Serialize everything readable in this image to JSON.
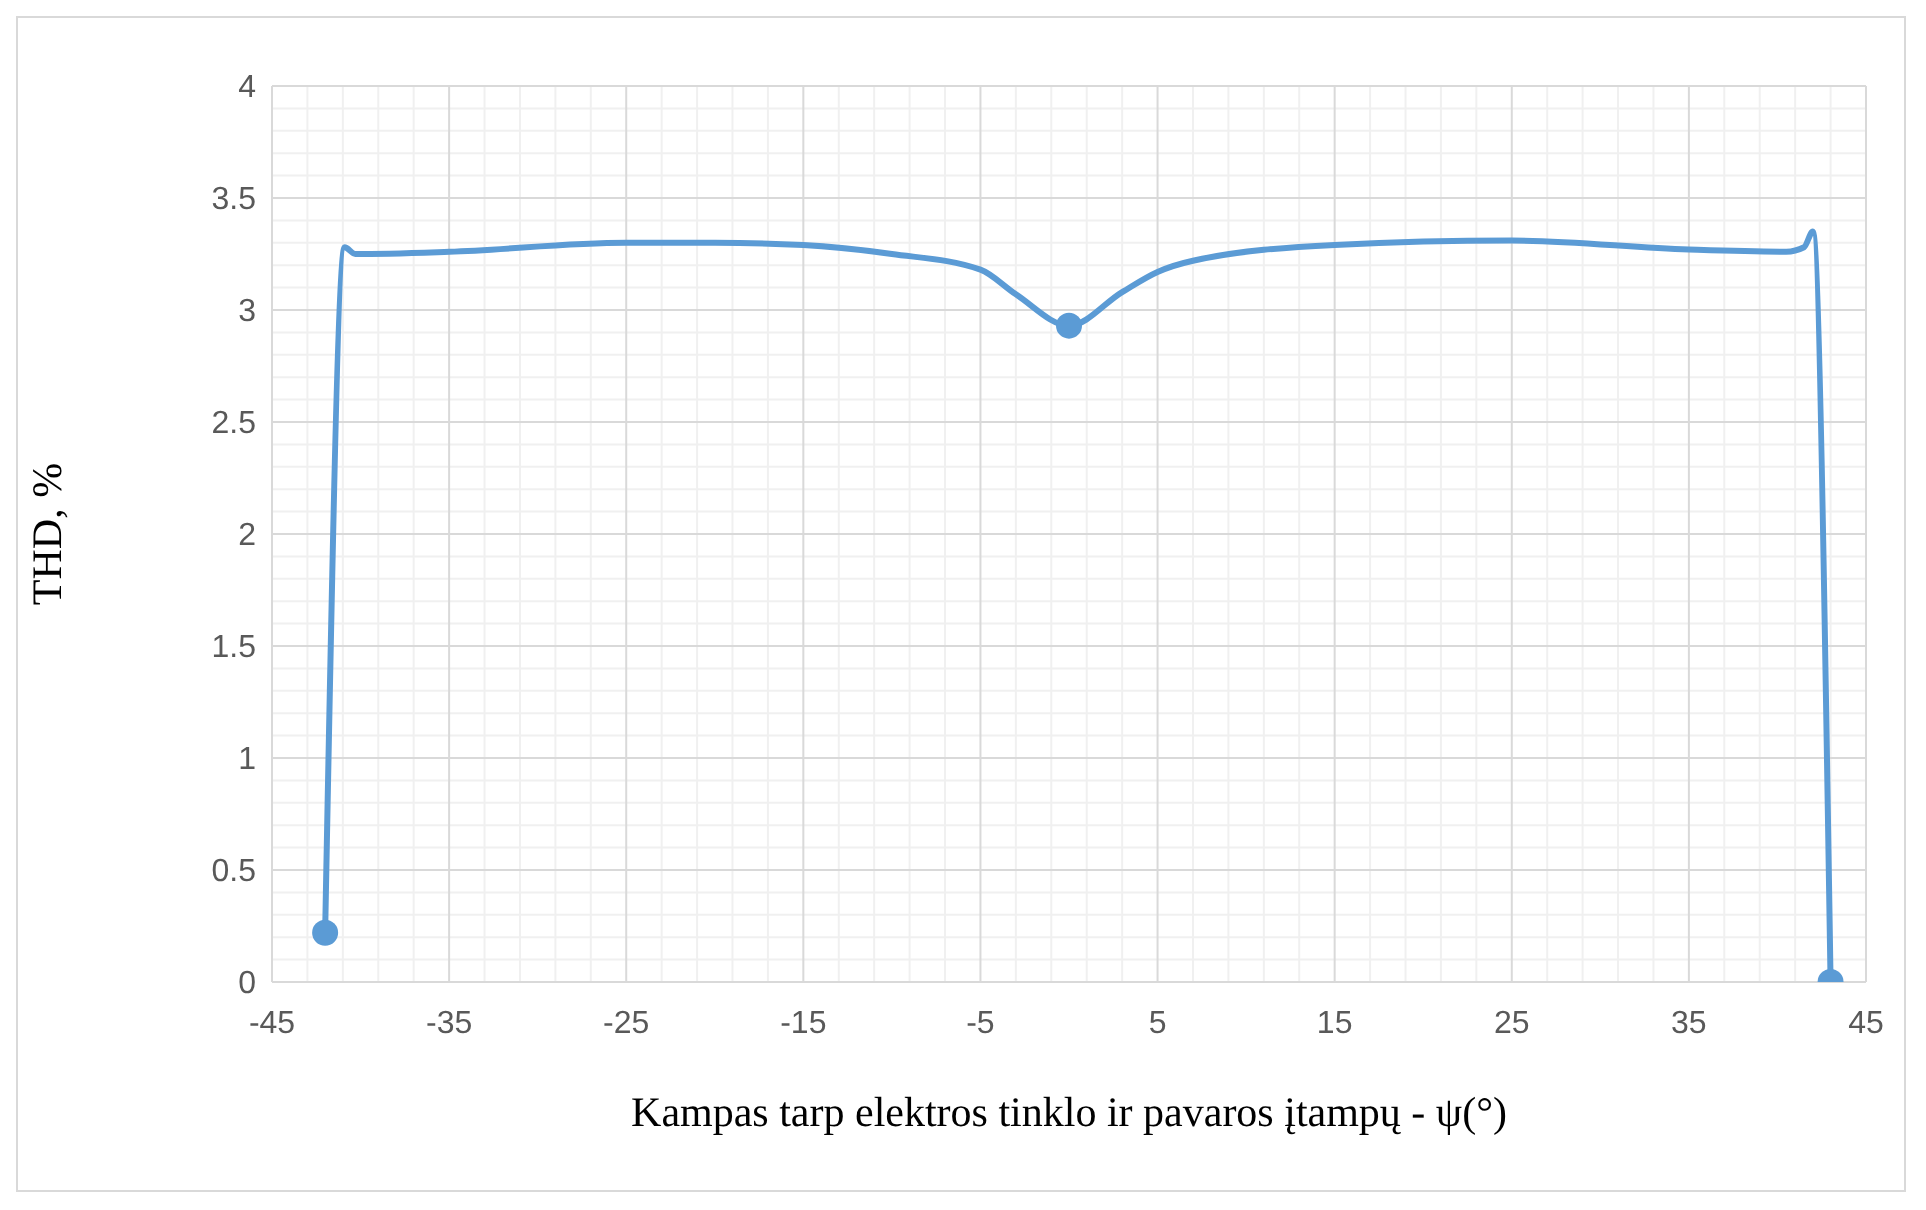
{
  "chart_data": {
    "type": "line",
    "xlabel": "Kampas tarp elektros tinklo ir pavaros įtampų - ψ(°)",
    "ylabel": "THD, %",
    "xlim": [
      -45,
      45
    ],
    "xticks": [
      -45,
      -35,
      -25,
      -15,
      -5,
      5,
      15,
      25,
      35,
      45
    ],
    "ylim": [
      0,
      4
    ],
    "yticks": [
      0,
      0.5,
      1,
      1.5,
      2,
      2.5,
      3,
      3.5,
      4
    ],
    "grid": true,
    "marker": "none",
    "line_style": "solid",
    "series": [
      {
        "color": "#5b9bd5",
        "x": [
          -42,
          -40.9,
          -40.3,
          -35,
          -25,
          -20,
          -15,
          -10,
          -5,
          -3,
          0,
          3,
          5,
          7,
          15,
          25,
          35,
          40.5,
          41.5,
          42,
          43
        ],
        "values": [
          0.22,
          3.28,
          3.25,
          3.26,
          3.3,
          3.3,
          3.29,
          3.25,
          3.18,
          3.07,
          2.93,
          3.08,
          3.17,
          3.22,
          3.29,
          3.31,
          3.27,
          3.26,
          3.28,
          3.35,
          0
        ]
      },
      {
        "type": "scatter",
        "color": "#5b9bd5",
        "marker": "circle",
        "x": [
          -42,
          0,
          43
        ],
        "values": [
          0.22,
          2.93,
          0
        ]
      }
    ]
  }
}
